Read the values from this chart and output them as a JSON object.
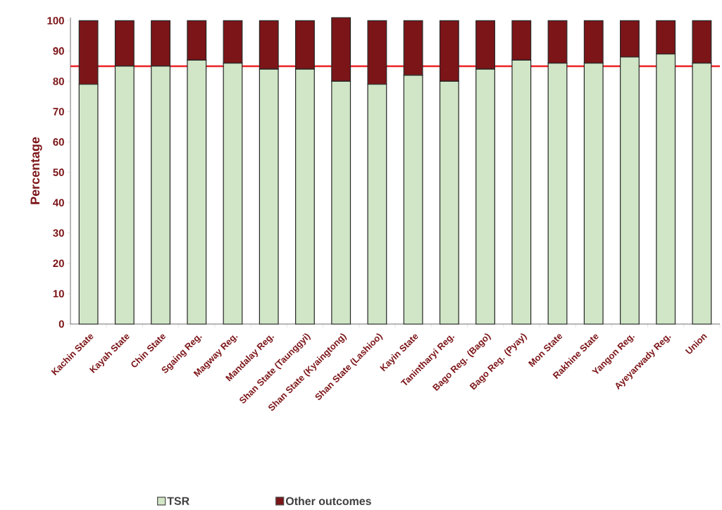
{
  "chart_data": {
    "type": "bar",
    "stacked": true,
    "ylabel": "Percentage",
    "categories": [
      "Kachin State",
      "Kayah State",
      "Chin State",
      "Sgaing Reg.",
      "Magway Reg.",
      "Mandalay Reg.",
      "Shan State (Taunggyi)",
      "Shan State (Kyaingtong)",
      "Shan State (Lashioo)",
      "Kayin State",
      "Tanintharyi Reg.",
      "Bago Reg. (Bago)",
      "Bago Reg. (Pyay)",
      "Mon State",
      "Rakhine State",
      "Yangon Reg.",
      "Ayeyarwady Reg.",
      "Union"
    ],
    "series": [
      {
        "name": "TSR",
        "color": "#d0e6c6",
        "values": [
          79,
          85,
          85,
          87,
          86,
          84,
          84,
          80,
          79,
          82,
          80,
          84,
          87,
          86,
          86,
          88,
          89,
          86
        ]
      },
      {
        "name": "Other outcomes",
        "color": "#7c1518",
        "values": [
          21,
          15,
          15,
          13,
          14,
          16,
          16,
          21,
          21,
          18,
          20,
          16,
          13,
          14,
          14,
          12,
          11,
          14
        ]
      }
    ],
    "ylim": [
      0,
      101
    ],
    "yticks": [
      0,
      10,
      20,
      30,
      40,
      50,
      60,
      70,
      80,
      90,
      100
    ],
    "ref_lines": [
      {
        "axis": "y",
        "value": 85,
        "color": "#ee2025"
      }
    ],
    "legend": "bottom",
    "grid": false
  }
}
